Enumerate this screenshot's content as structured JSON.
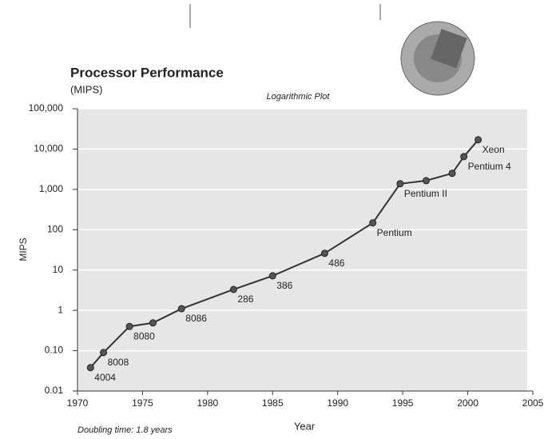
{
  "chart_data": {
    "type": "line",
    "title": "Processor Performance",
    "subtitle": "(MIPS)",
    "annotation": "Logarithmic Plot",
    "note": "Doubling time: 1.8 years",
    "xlabel": "Year",
    "ylabel": "MIPS",
    "yscale": "log",
    "grid": true,
    "color": "#333333",
    "x": [
      1971,
      1972,
      1974,
      1975.8,
      1978,
      1982,
      1985,
      1989,
      1992.7,
      1994.8,
      1996.8,
      1998.8,
      1999.7,
      2000.8
    ],
    "values": [
      0.038,
      0.09,
      0.4,
      0.49,
      1.1,
      3.3,
      7.2,
      26,
      148,
      1380,
      1650,
      2500,
      6500,
      17000
    ],
    "point_labels": [
      "4004",
      "8008",
      "8080",
      null,
      "8086",
      "286",
      "386",
      "486",
      "Pentium",
      "Pentium II",
      null,
      null,
      "Pentium 4",
      "Xeon"
    ],
    "xlim": [
      1970,
      2005
    ],
    "xticks": [
      1970,
      1975,
      1980,
      1985,
      1990,
      1995,
      2000,
      2005
    ],
    "ylim": [
      0.01,
      100000
    ],
    "yticks": [
      0.01,
      {
        "value": 0.1,
        "label": "0.10"
      },
      1,
      10,
      100,
      {
        "value": 1000,
        "label": "1,000"
      },
      {
        "value": 10000,
        "label": "10,000"
      },
      {
        "value": 100000,
        "label": "100,000"
      }
    ]
  }
}
